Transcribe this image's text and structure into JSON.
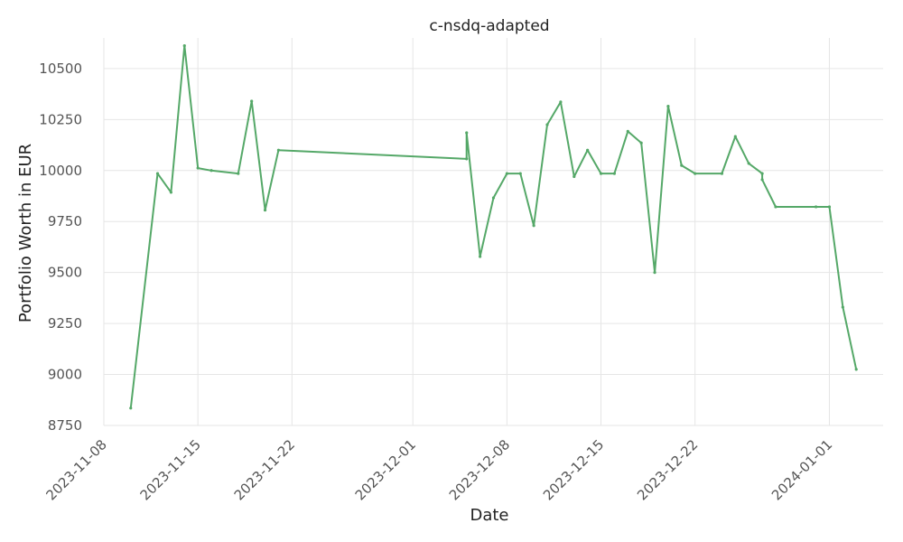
{
  "chart_data": {
    "type": "line",
    "title": "c-nsdq-adapted",
    "xlabel": "Date",
    "ylabel": "Portfolio Worth in EUR",
    "x_ticks": [
      "2023-11-08",
      "2023-11-15",
      "2023-11-22",
      "2023-12-01",
      "2023-12-08",
      "2023-12-15",
      "2023-12-22",
      "2024-01-01"
    ],
    "y_ticks": [
      8750,
      9000,
      9250,
      9500,
      9750,
      10000,
      10250,
      10500
    ],
    "xlim": [
      "2023-11-08",
      "2024-01-05"
    ],
    "ylim": [
      8750,
      10650
    ],
    "grid": true,
    "series": [
      {
        "color": "#55a868",
        "points": [
          [
            "2023-11-10",
            8835
          ],
          [
            "2023-11-12",
            9985
          ],
          [
            "2023-11-13",
            9893
          ],
          [
            "2023-11-14",
            10612
          ],
          [
            "2023-11-15",
            10012
          ],
          [
            "2023-11-16",
            10000
          ],
          [
            "2023-11-18",
            9985
          ],
          [
            "2023-11-19",
            10340
          ],
          [
            "2023-11-20",
            9806
          ],
          [
            "2023-11-21",
            10100
          ],
          [
            "2023-12-05",
            10057
          ],
          [
            "2023-12-05",
            10185
          ],
          [
            "2023-12-06",
            9578
          ],
          [
            "2023-12-07",
            9866
          ],
          [
            "2023-12-08",
            9985
          ],
          [
            "2023-12-09",
            9985
          ],
          [
            "2023-12-10",
            9730
          ],
          [
            "2023-12-11",
            10225
          ],
          [
            "2023-12-12",
            10336
          ],
          [
            "2023-12-13",
            9970
          ],
          [
            "2023-12-14",
            10100
          ],
          [
            "2023-12-15",
            9985
          ],
          [
            "2023-12-16",
            9985
          ],
          [
            "2023-12-17",
            10192
          ],
          [
            "2023-12-18",
            10135
          ],
          [
            "2023-12-19",
            9500
          ],
          [
            "2023-12-20",
            10315
          ],
          [
            "2023-12-21",
            10025
          ],
          [
            "2023-12-22",
            9985
          ],
          [
            "2023-12-24",
            9985
          ],
          [
            "2023-12-25",
            10167
          ],
          [
            "2023-12-26",
            10035
          ],
          [
            "2023-12-27",
            9985
          ],
          [
            "2023-12-27",
            9955
          ],
          [
            "2023-12-28",
            9822
          ],
          [
            "2023-12-31",
            9822
          ],
          [
            "2024-01-01",
            9822
          ],
          [
            "2024-01-02",
            9330
          ],
          [
            "2024-01-03",
            9025
          ]
        ]
      }
    ]
  }
}
